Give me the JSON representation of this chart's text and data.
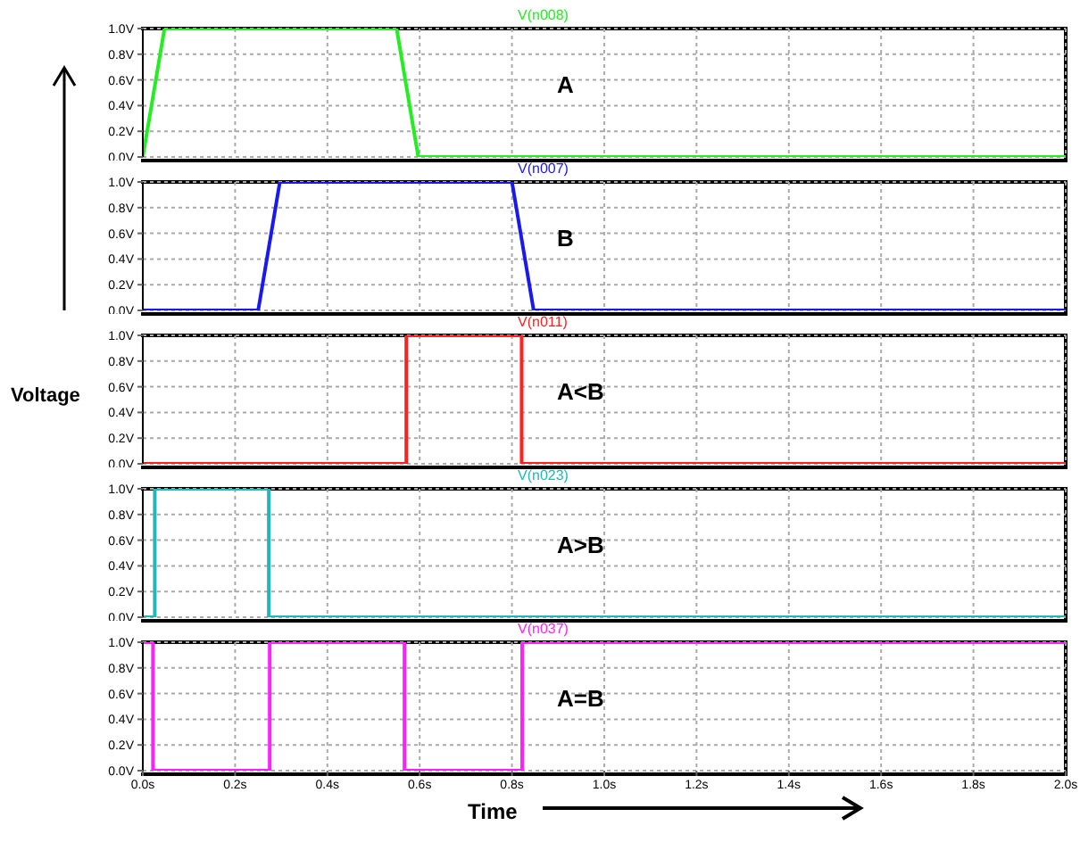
{
  "chart_data": [
    {
      "type": "line",
      "x": [
        0,
        0.047,
        0.55,
        0.597,
        2.0
      ],
      "series": [
        {
          "name": "V(n008)",
          "color": "#22ee22",
          "values": [
            0,
            1,
            1,
            0,
            0
          ]
        }
      ],
      "annotations": [
        "A"
      ],
      "xlim": [
        0,
        2
      ],
      "ylim": [
        0,
        1
      ],
      "xticks": [
        0,
        0.2,
        0.4,
        0.6,
        0.8,
        1,
        1.2,
        1.4,
        1.6,
        1.8,
        2
      ],
      "yticks": [
        {
          "value": 0,
          "label": "0.0V"
        },
        {
          "value": 0.2,
          "label": "0.2V"
        },
        {
          "value": 0.4,
          "label": "0.4V"
        },
        {
          "value": 0.6,
          "label": "0.6V"
        },
        {
          "value": 0.8,
          "label": "0.8V"
        },
        {
          "value": 1,
          "label": "1.0V"
        }
      ],
      "tick_labels": "y",
      "grid": true,
      "marker": "none"
    },
    {
      "type": "line",
      "x": [
        0,
        0.25,
        0.297,
        0.8,
        0.847,
        2.0
      ],
      "series": [
        {
          "name": "V(n007)",
          "color": "#1a1aee",
          "values": [
            0,
            0,
            1,
            1,
            0,
            0
          ]
        }
      ],
      "annotations": [
        "B"
      ],
      "xlim": [
        0,
        2
      ],
      "ylim": [
        0,
        1
      ],
      "xticks": [
        0,
        0.2,
        0.4,
        0.6,
        0.8,
        1,
        1.2,
        1.4,
        1.6,
        1.8,
        2
      ],
      "yticks": [
        {
          "value": 0,
          "label": "0.0V"
        },
        {
          "value": 0.2,
          "label": "0.2V"
        },
        {
          "value": 0.4,
          "label": "0.4V"
        },
        {
          "value": 0.6,
          "label": "0.6V"
        },
        {
          "value": 0.8,
          "label": "0.8V"
        },
        {
          "value": 1,
          "label": "1.0V"
        }
      ],
      "tick_labels": "y",
      "grid": true,
      "marker": "none"
    },
    {
      "type": "line",
      "ylabel": "Voltage",
      "x": [
        0,
        0.571,
        0.571,
        0.821,
        0.821,
        2.0
      ],
      "series": [
        {
          "name": "V(n011)",
          "color": "#ff2020",
          "values": [
            0,
            0,
            1,
            1,
            0,
            0
          ]
        }
      ],
      "annotations": [
        "A<B"
      ],
      "xlim": [
        0,
        2
      ],
      "ylim": [
        0,
        1
      ],
      "xticks": [
        0,
        0.2,
        0.4,
        0.6,
        0.8,
        1,
        1.2,
        1.4,
        1.6,
        1.8,
        2
      ],
      "yticks": [
        {
          "value": 0,
          "label": "0.0V"
        },
        {
          "value": 0.2,
          "label": "0.2V"
        },
        {
          "value": 0.4,
          "label": "0.4V"
        },
        {
          "value": 0.6,
          "label": "0.6V"
        },
        {
          "value": 0.8,
          "label": "0.8V"
        },
        {
          "value": 1,
          "label": "1.0V"
        }
      ],
      "tick_labels": "y",
      "grid": true,
      "marker": "none"
    },
    {
      "type": "line",
      "x": [
        0,
        0.026,
        0.026,
        0.273,
        0.273,
        2.0
      ],
      "series": [
        {
          "name": "V(n023)",
          "color": "#20b8b8",
          "values": [
            0,
            0,
            1,
            1,
            0,
            0
          ]
        }
      ],
      "annotations": [
        "A>B"
      ],
      "xlim": [
        0,
        2
      ],
      "ylim": [
        0,
        1
      ],
      "xticks": [
        0,
        0.2,
        0.4,
        0.6,
        0.8,
        1,
        1.2,
        1.4,
        1.6,
        1.8,
        2
      ],
      "yticks": [
        {
          "value": 0,
          "label": "0.0V"
        },
        {
          "value": 0.2,
          "label": "0.2V"
        },
        {
          "value": 0.4,
          "label": "0.4V"
        },
        {
          "value": 0.6,
          "label": "0.6V"
        },
        {
          "value": 0.8,
          "label": "0.8V"
        },
        {
          "value": 1,
          "label": "1.0V"
        }
      ],
      "tick_labels": "y",
      "grid": true,
      "marker": "none"
    },
    {
      "type": "line",
      "xlabel": "Time",
      "x": [
        0,
        0.022,
        0.022,
        0.275,
        0.275,
        0.567,
        0.567,
        0.822,
        0.822,
        2.0
      ],
      "series": [
        {
          "name": "V(n037)",
          "color": "#ff20ff",
          "values": [
            1,
            1,
            0,
            0,
            1,
            1,
            0,
            0,
            1,
            1
          ]
        }
      ],
      "annotations": [
        "A=B"
      ],
      "xlim": [
        0,
        2
      ],
      "ylim": [
        0,
        1
      ],
      "xticks": [
        {
          "value": 0,
          "label": "0.0s"
        },
        {
          "value": 0.2,
          "label": "0.2s"
        },
        {
          "value": 0.4,
          "label": "0.4s"
        },
        {
          "value": 0.6,
          "label": "0.6s"
        },
        {
          "value": 0.8,
          "label": "0.8s"
        },
        {
          "value": 1,
          "label": "1.0s"
        },
        {
          "value": 1.2,
          "label": "1.2s"
        },
        {
          "value": 1.4,
          "label": "1.4s"
        },
        {
          "value": 1.6,
          "label": "1.6s"
        },
        {
          "value": 1.8,
          "label": "1.8s"
        },
        {
          "value": 2,
          "label": "2.0s"
        }
      ],
      "yticks": [
        {
          "value": 0,
          "label": "0.0V"
        },
        {
          "value": 0.2,
          "label": "0.2V"
        },
        {
          "value": 0.4,
          "label": "0.4V"
        },
        {
          "value": 0.6,
          "label": "0.6V"
        },
        {
          "value": 0.8,
          "label": "0.8V"
        },
        {
          "value": 1,
          "label": "1.0V"
        }
      ],
      "grid": true,
      "marker": "none"
    }
  ]
}
